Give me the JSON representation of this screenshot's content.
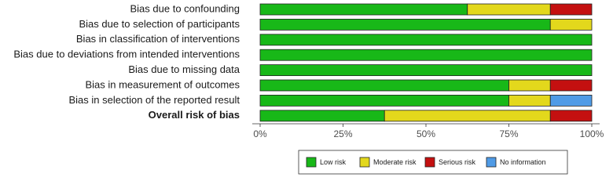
{
  "chart_data": {
    "type": "bar",
    "orientation": "horizontal",
    "stacked": true,
    "categories": [
      "Bias due to confounding",
      "Bias due to selection of participants",
      "Bias in classification of interventions",
      "Bias due to deviations from intended interventions",
      "Bias due to missing data",
      "Bias in measurement of outcomes",
      "Bias in selection of the reported result",
      "Overall risk of bias"
    ],
    "series": [
      {
        "name": "Low risk",
        "color": "#18b818",
        "values": [
          62.5,
          87.5,
          100,
          100,
          100,
          75,
          75,
          37.5
        ]
      },
      {
        "name": "Moderate risk",
        "color": "#e3d81c",
        "values": [
          25,
          12.5,
          0,
          0,
          0,
          12.5,
          12.5,
          50
        ]
      },
      {
        "name": "Serious risk",
        "color": "#c41010",
        "values": [
          12.5,
          0,
          0,
          0,
          0,
          12.5,
          0,
          12.5
        ]
      },
      {
        "name": "No information",
        "color": "#4f9be6",
        "values": [
          0,
          0,
          0,
          0,
          0,
          0,
          12.5,
          0
        ]
      }
    ],
    "xlim": [
      0,
      100
    ],
    "xticks": [
      {
        "value": 0,
        "label": "0%"
      },
      {
        "value": 25,
        "label": "25%"
      },
      {
        "value": 50,
        "label": "50%"
      },
      {
        "value": 75,
        "label": "75%"
      },
      {
        "value": 100,
        "label": "100%"
      }
    ],
    "legend": "bottom"
  }
}
